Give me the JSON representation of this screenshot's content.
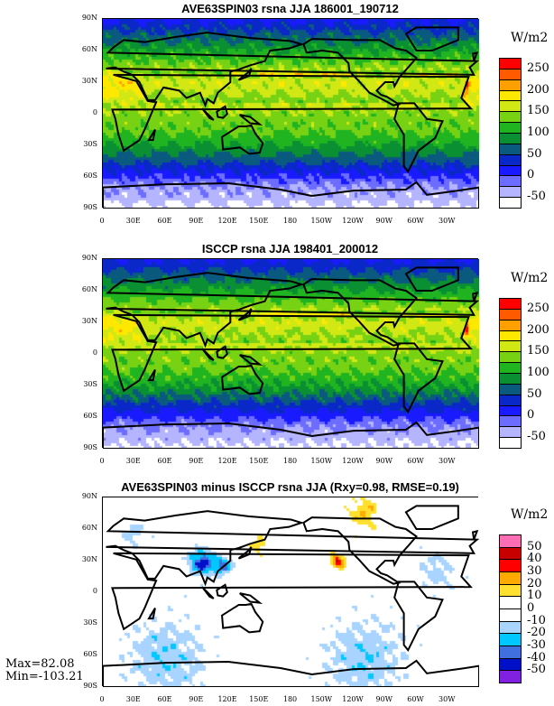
{
  "chart_data": [
    {
      "type": "heatmap",
      "title": "AVE63SPIN03 rsna JJA 186001_190712",
      "units": "W/m2",
      "levels": [
        -50,
        -25,
        0,
        25,
        50,
        75,
        100,
        125,
        150,
        175,
        200,
        225,
        250
      ],
      "colorbar_labels": [
        "250",
        "200",
        "150",
        "100",
        "50",
        "0",
        "-50"
      ],
      "colors": [
        "#ffffff",
        "#b4b4ff",
        "#6c6cff",
        "#1a1aff",
        "#0a28c8",
        "#0a5a80",
        "#0a9032",
        "#20b420",
        "#78d214",
        "#d2e814",
        "#ffe800",
        "#ffa000",
        "#ff5a00",
        "#ff0000"
      ]
    },
    {
      "type": "heatmap",
      "title": "ISCCP rsna JJA 198401_200012",
      "units": "W/m2",
      "levels": [
        -50,
        -25,
        0,
        25,
        50,
        75,
        100,
        125,
        150,
        175,
        200,
        225,
        250
      ],
      "colorbar_labels": [
        "250",
        "200",
        "150",
        "100",
        "50",
        "0",
        "-50"
      ],
      "colors": [
        "#ffffff",
        "#b4b4ff",
        "#6c6cff",
        "#1a1aff",
        "#0a28c8",
        "#0a5a80",
        "#0a9032",
        "#20b420",
        "#78d214",
        "#d2e814",
        "#ffe800",
        "#ffa000",
        "#ff5a00",
        "#ff0000"
      ]
    },
    {
      "type": "heatmap",
      "title": "AVE63SPIN03 minus ISCCP rsna JJA (Rxy=0.98, RMSE=0.19)",
      "units": "W/m2",
      "levels": [
        -50,
        -40,
        -30,
        -20,
        -10,
        0,
        10,
        20,
        30,
        40,
        50
      ],
      "colorbar_labels": [
        "50",
        "40",
        "30",
        "20",
        "10",
        "0",
        "-10",
        "-20",
        "-30",
        "-40",
        "-50"
      ],
      "colors": [
        "#8020e0",
        "#0010c8",
        "#4070e0",
        "#00c8ff",
        "#a8d4ff",
        "#ffffff",
        "#ffffff",
        "#ffe030",
        "#ffaa00",
        "#ff0000",
        "#c80000",
        "#ff6eb4"
      ],
      "max": "Max=82.08",
      "min": "Min=-103.21"
    }
  ],
  "axes": {
    "y_ticks": [
      "90N",
      "60N",
      "30N",
      "0",
      "30S",
      "60S",
      "90S"
    ],
    "x_ticks": [
      "0",
      "30E",
      "60E",
      "90E",
      "120E",
      "150E",
      "180",
      "150W",
      "120W",
      "90W",
      "60W",
      "30W"
    ],
    "xlim": [
      0,
      360
    ],
    "ylim": [
      -90,
      90
    ]
  }
}
